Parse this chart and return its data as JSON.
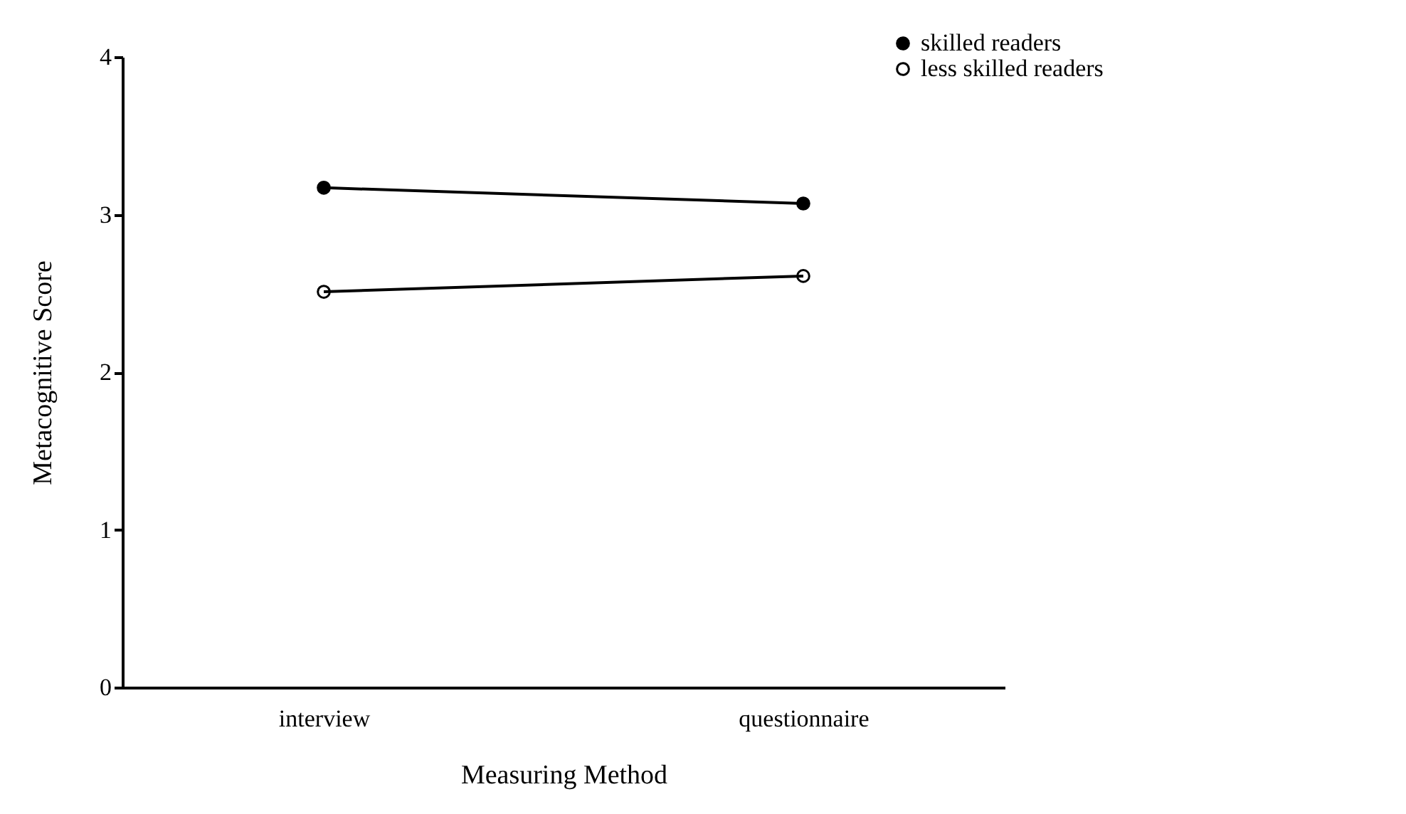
{
  "chart_data": {
    "type": "line",
    "xlabel": "Measuring Method",
    "ylabel": "Metacognitive Score",
    "categories": [
      "interview",
      "questionnaire"
    ],
    "series": [
      {
        "name": "skilled readers",
        "color": "#000000",
        "values": [
          3.17,
          3.07
        ]
      },
      {
        "name": "less skilled readers",
        "color": "#000000",
        "values": [
          2.51,
          2.61
        ]
      }
    ],
    "ylim": [
      0,
      4
    ],
    "yticks": [
      0,
      1,
      2,
      3,
      4
    ],
    "grid": false,
    "legend": "top right",
    "marker": "circle"
  }
}
